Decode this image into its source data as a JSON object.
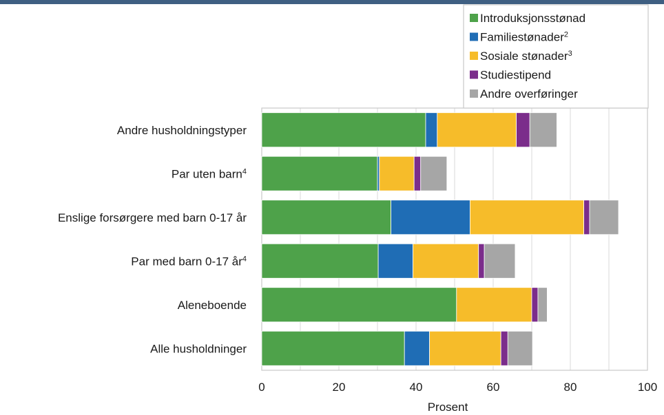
{
  "chart_data": {
    "type": "bar",
    "orientation": "horizontal",
    "stacked": true,
    "categories": [
      {
        "label": "Andre husholdningstyper",
        "sup": ""
      },
      {
        "label": "Par uten barn",
        "sup": "4"
      },
      {
        "label": "Enslige forsørgere med barn 0-17 år",
        "sup": ""
      },
      {
        "label": "Par med barn 0-17 år",
        "sup": "4"
      },
      {
        "label": "Aleneboende",
        "sup": ""
      },
      {
        "label": "Alle husholdninger",
        "sup": ""
      }
    ],
    "series": [
      {
        "name": "Introduksjonsstønad",
        "sup": "",
        "color": "#4ea24a",
        "values": [
          42.5,
          30.0,
          33.5,
          30.2,
          50.5,
          37.0
        ]
      },
      {
        "name": "Familiestønader",
        "sup": "2",
        "color": "#1f6db5",
        "values": [
          3.0,
          0.5,
          20.5,
          9.0,
          0.0,
          6.5
        ]
      },
      {
        "name": "Sosiale stønader",
        "sup": "3",
        "color": "#f6bc2a",
        "values": [
          20.5,
          9.0,
          29.5,
          17.0,
          19.5,
          18.5
        ]
      },
      {
        "name": "Studiestipend",
        "sup": "",
        "color": "#7b2d8b",
        "values": [
          3.5,
          1.7,
          1.5,
          1.5,
          1.6,
          1.8
        ]
      },
      {
        "name": "Andre overføringer",
        "sup": "",
        "color": "#a6a6a6",
        "values": [
          7.0,
          6.8,
          7.5,
          8.0,
          2.4,
          6.4
        ]
      }
    ],
    "xlabel": "Prosent",
    "xlim": [
      0,
      100
    ],
    "xticks": [
      0,
      20,
      40,
      60,
      80,
      100
    ],
    "grid": "vertical",
    "legend_position": "top-right"
  }
}
